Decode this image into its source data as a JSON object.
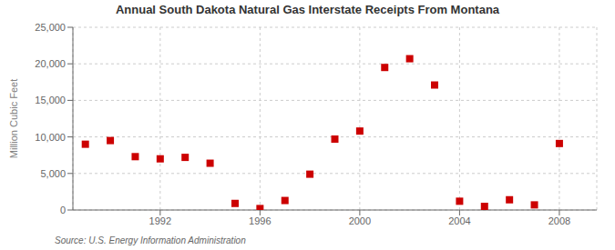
{
  "chart_data": {
    "type": "scatter",
    "title": "Annual South Dakota Natural Gas Interstate Receipts From Montana",
    "ylabel": "Million Cubic Feet",
    "annotation": "Source: U.S. Energy Information Administration",
    "x": [
      1989,
      1990,
      1991,
      1992,
      1993,
      1994,
      1995,
      1996,
      1997,
      1998,
      1999,
      2000,
      2001,
      2002,
      2003,
      2004,
      2005,
      2006,
      2007,
      2008
    ],
    "values": [
      9000,
      9500,
      7300,
      7000,
      7200,
      6400,
      900,
      200,
      1300,
      4900,
      9700,
      10800,
      19500,
      20700,
      17100,
      1200,
      500,
      1400,
      700,
      9100
    ],
    "color": "#CC0000",
    "marker": "square",
    "xlim": [
      1988.5,
      2009.5
    ],
    "ylim": [
      0,
      25000
    ],
    "xticks": [
      1992,
      1996,
      2000,
      2004,
      2008
    ],
    "yticks": [
      0,
      {
        "value": 5000,
        "label": "5,000"
      },
      {
        "value": 10000,
        "label": "10,000"
      },
      {
        "value": 15000,
        "label": "15,000"
      },
      {
        "value": 20000,
        "label": "20,000"
      },
      {
        "value": 25000,
        "label": "25,000"
      }
    ],
    "grid": true
  }
}
